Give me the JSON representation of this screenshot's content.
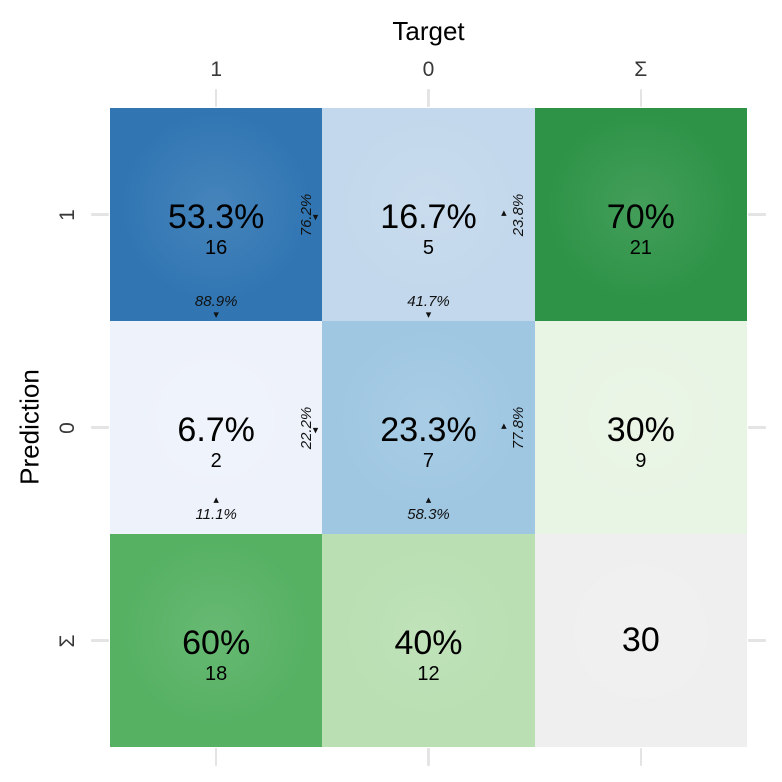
{
  "chart_data": {
    "type": "heatmap",
    "subtype": "confusion-matrix",
    "x_axis": {
      "label": "Target",
      "ticks": [
        "1",
        "0",
        "Σ"
      ]
    },
    "y_axis": {
      "label": "Prediction",
      "ticks": [
        "1",
        "0",
        "Σ"
      ]
    },
    "counts": {
      "pred_1_target_1": 16,
      "pred_1_target_0": 5,
      "pred_0_target_1": 2,
      "pred_0_target_0": 7
    },
    "row_sums": {
      "pred_1": 21,
      "pred_0": 9
    },
    "col_sums": {
      "target_1": 18,
      "target_0": 12
    },
    "total": 30,
    "cells": [
      {
        "pred": "1",
        "target": "1",
        "main": "53.3%",
        "count": "16",
        "right_note": {
          "text": "76.2%",
          "arrow": "down"
        },
        "bottom_note": {
          "text": "88.9%",
          "arrow": "down"
        },
        "bg": "#3176b3"
      },
      {
        "pred": "1",
        "target": "0",
        "main": "16.7%",
        "count": "5",
        "right_note": {
          "text": "23.8%",
          "arrow": "up"
        },
        "bottom_note": {
          "text": "41.7%",
          "arrow": "down"
        },
        "bg": "#c3d8ec"
      },
      {
        "pred": "1",
        "target": "Σ",
        "main": "70%",
        "count": "21",
        "bg": "#2e9347"
      },
      {
        "pred": "0",
        "target": "1",
        "main": "6.7%",
        "count": "2",
        "right_note": {
          "text": "22.2%",
          "arrow": "down"
        },
        "bottom_note": {
          "text": "11.1%",
          "arrow": "up"
        },
        "bg": "#eef2fb"
      },
      {
        "pred": "0",
        "target": "0",
        "main": "23.3%",
        "count": "7",
        "right_note": {
          "text": "77.8%",
          "arrow": "up"
        },
        "bottom_note": {
          "text": "58.3%",
          "arrow": "up"
        },
        "bg": "#9fc7e2"
      },
      {
        "pred": "0",
        "target": "Σ",
        "main": "30%",
        "count": "9",
        "bg": "#e8f4e4"
      },
      {
        "pred": "Σ",
        "target": "1",
        "main": "60%",
        "count": "18",
        "bg": "#56b163"
      },
      {
        "pred": "Σ",
        "target": "0",
        "main": "40%",
        "count": "12",
        "bg": "#b9dfb2"
      },
      {
        "pred": "Σ",
        "target": "Σ",
        "main": "30",
        "bg": "#efefef",
        "is_total": true
      }
    ]
  },
  "style": {
    "tick_color": "#e4e4e4",
    "axis_text_color": "#383838",
    "note_color": "#111111",
    "arrow_up_glyph": "▴",
    "arrow_down_glyph": "▾"
  }
}
